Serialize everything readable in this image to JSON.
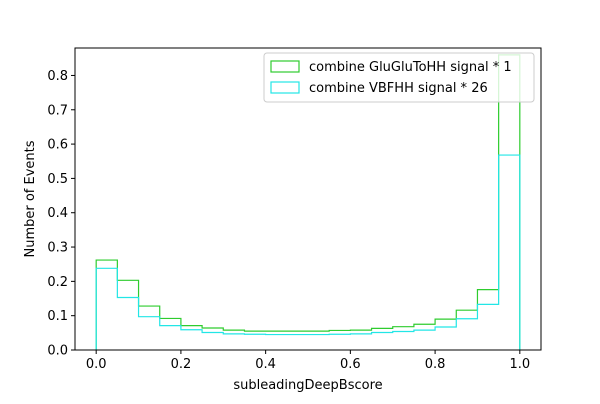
{
  "chart_data": {
    "type": "histogram",
    "xlabel": "subleadingDeepBscore",
    "ylabel": "Number of Events",
    "xlim": [
      -0.05,
      1.05
    ],
    "ylim": [
      0.0,
      0.88
    ],
    "xticks": [
      0.0,
      0.2,
      0.4,
      0.6,
      0.8,
      1.0
    ],
    "xtick_labels": [
      "0.0",
      "0.2",
      "0.4",
      "0.6",
      "0.8",
      "1.0"
    ],
    "yticks": [
      0.0,
      0.1,
      0.2,
      0.3,
      0.4,
      0.5,
      0.6,
      0.7,
      0.8
    ],
    "ytick_labels": [
      "0.0",
      "0.1",
      "0.2",
      "0.3",
      "0.4",
      "0.5",
      "0.6",
      "0.7",
      "0.8"
    ],
    "bin_edges": [
      0.0,
      0.05,
      0.1,
      0.15,
      0.2,
      0.25,
      0.3,
      0.35,
      0.4,
      0.45,
      0.5,
      0.55,
      0.6,
      0.65,
      0.7,
      0.75,
      0.8,
      0.85,
      0.9,
      0.95,
      1.0
    ],
    "legend_placement": "top-right",
    "grid": false,
    "series": [
      {
        "name": "combine GluGluToHH signal * 1",
        "color": "#2ecc2e",
        "values": [
          0.262,
          0.203,
          0.128,
          0.092,
          0.071,
          0.064,
          0.058,
          0.055,
          0.055,
          0.055,
          0.055,
          0.057,
          0.058,
          0.063,
          0.068,
          0.075,
          0.09,
          0.116,
          0.176,
          0.86
        ]
      },
      {
        "name": "combine VBFHH signal * 26",
        "color": "#22e6e6",
        "values": [
          0.238,
          0.153,
          0.097,
          0.071,
          0.059,
          0.051,
          0.047,
          0.046,
          0.045,
          0.045,
          0.045,
          0.046,
          0.047,
          0.051,
          0.054,
          0.058,
          0.067,
          0.091,
          0.133,
          0.568
        ]
      }
    ]
  }
}
